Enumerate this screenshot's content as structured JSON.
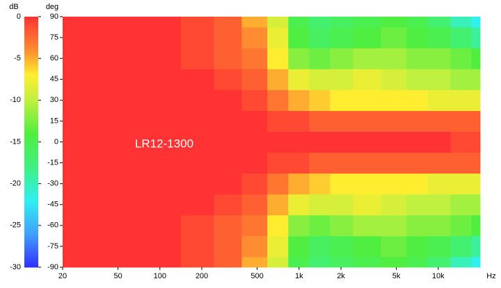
{
  "chart_data": {
    "type": "heatmap",
    "annotation": "LR12-1300",
    "x_label": "Hz",
    "y_label": "deg",
    "colorbar_label": "dB",
    "log_x": true,
    "xlim": [
      20,
      20000
    ],
    "xticks": [
      20,
      50,
      100,
      200,
      500,
      {
        "value": 1000,
        "label": "1k"
      },
      {
        "value": 2000,
        "label": "2k"
      },
      {
        "value": 5000,
        "label": "5k"
      },
      {
        "value": 10000,
        "label": "10k"
      }
    ],
    "ylim": [
      -90,
      90
    ],
    "yticks": [
      -90,
      -75,
      -60,
      -45,
      -30,
      -15,
      0,
      15,
      30,
      45,
      60,
      75,
      90
    ],
    "clim": [
      -30,
      0
    ],
    "cticks": [
      0,
      -5,
      -10,
      -15,
      -20,
      -25,
      -30
    ],
    "colorscale": [
      [
        0,
        "#ff3333"
      ],
      [
        -4,
        "#ff8c30"
      ],
      [
        -7,
        "#ffee30"
      ],
      [
        -10,
        "#c0f040"
      ],
      [
        -14,
        "#50ee40"
      ],
      [
        -18,
        "#40f080"
      ],
      [
        -22,
        "#30f0f0"
      ],
      [
        -26,
        "#40a0ff"
      ],
      [
        -30,
        "#3030ff"
      ]
    ],
    "x": [
      20,
      50,
      100,
      200,
      300,
      500,
      700,
      1000,
      1400,
      2000,
      3000,
      5000,
      7000,
      10000,
      15000,
      20000
    ],
    "y": [
      -90,
      -75,
      -60,
      -45,
      -30,
      -15,
      0,
      15,
      30,
      45,
      60,
      75,
      90
    ],
    "values": [
      [
        0,
        0,
        0,
        -1,
        -2,
        -5,
        -9,
        -15,
        -17,
        -16,
        -15,
        -14,
        -15,
        -17,
        -20,
        -22
      ],
      [
        0,
        0,
        0,
        -1,
        -2,
        -4,
        -8,
        -14,
        -16,
        -15,
        -14,
        -13,
        -14,
        -15,
        -17,
        -19
      ],
      [
        0,
        0,
        0,
        -1,
        -2,
        -3,
        -7,
        -12,
        -13,
        -12,
        -11,
        -11,
        -12,
        -12,
        -13,
        -14
      ],
      [
        0,
        0,
        0,
        0,
        -1,
        -2,
        -5,
        -8,
        -9,
        -9,
        -8,
        -9,
        -10,
        -10,
        -11,
        -11
      ],
      [
        0,
        0,
        0,
        0,
        0,
        -1,
        -3,
        -5,
        -6,
        -7,
        -7,
        -7,
        -7,
        -8,
        -8,
        -8
      ],
      [
        0,
        0,
        0,
        0,
        0,
        0,
        -1,
        -1,
        -2,
        -2,
        -2,
        -2,
        -2,
        -2,
        -2,
        -2
      ],
      [
        0,
        0,
        0,
        0,
        0,
        0,
        0,
        0,
        0,
        0,
        0,
        0,
        0,
        0,
        -1,
        -1
      ],
      [
        0,
        0,
        0,
        0,
        0,
        0,
        -1,
        -1,
        -2,
        -2,
        -2,
        -2,
        -2,
        -2,
        -2,
        -2
      ],
      [
        0,
        0,
        0,
        0,
        0,
        -1,
        -3,
        -5,
        -6,
        -7,
        -7,
        -7,
        -7,
        -8,
        -8,
        -8
      ],
      [
        0,
        0,
        0,
        0,
        -1,
        -2,
        -5,
        -8,
        -9,
        -9,
        -8,
        -9,
        -10,
        -10,
        -11,
        -11
      ],
      [
        0,
        0,
        0,
        -1,
        -2,
        -3,
        -7,
        -12,
        -13,
        -12,
        -11,
        -11,
        -12,
        -12,
        -13,
        -14
      ],
      [
        0,
        0,
        0,
        -1,
        -2,
        -4,
        -8,
        -14,
        -16,
        -15,
        -14,
        -13,
        -14,
        -15,
        -17,
        -19
      ],
      [
        0,
        0,
        0,
        -1,
        -2,
        -5,
        -9,
        -15,
        -17,
        -16,
        -15,
        -14,
        -15,
        -17,
        -20,
        -22
      ]
    ]
  }
}
